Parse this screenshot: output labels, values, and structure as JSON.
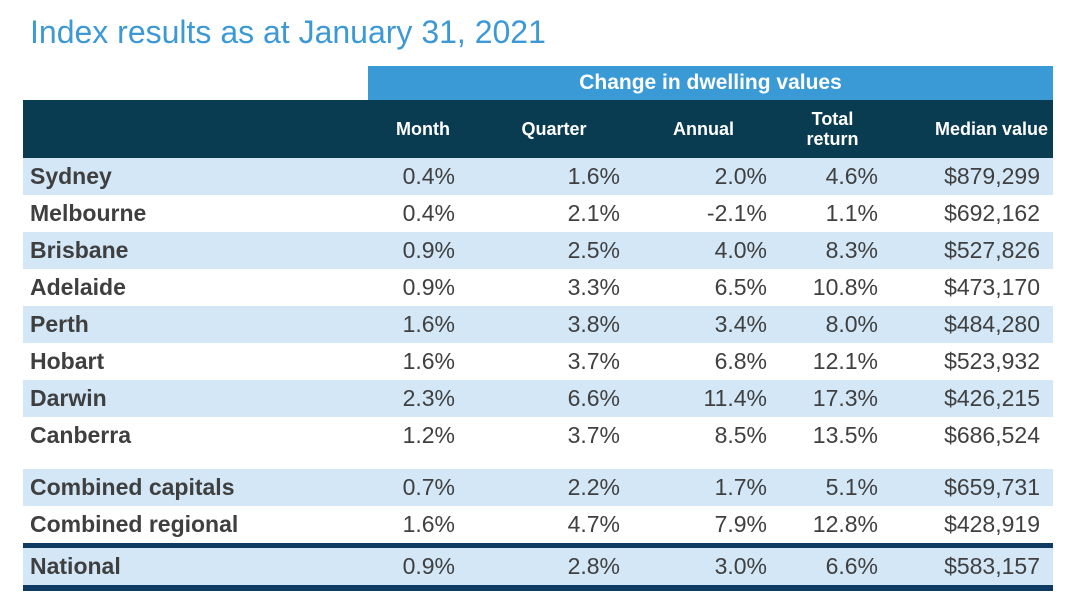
{
  "title": "Index results as at January 31, 2021",
  "table": {
    "band_label": "Change in dwelling values",
    "columns": {
      "month": "Month",
      "quarter": "Quarter",
      "annual": "Annual",
      "total_return": "Total return",
      "median_value": "Median value"
    },
    "rows": [
      {
        "label": "Sydney",
        "month": "0.4%",
        "quarter": "1.6%",
        "annual": "2.0%",
        "total_return": "4.6%",
        "median_value": "$879,299"
      },
      {
        "label": "Melbourne",
        "month": "0.4%",
        "quarter": "2.1%",
        "annual": "-2.1%",
        "total_return": "1.1%",
        "median_value": "$692,162"
      },
      {
        "label": "Brisbane",
        "month": "0.9%",
        "quarter": "2.5%",
        "annual": "4.0%",
        "total_return": "8.3%",
        "median_value": "$527,826"
      },
      {
        "label": "Adelaide",
        "month": "0.9%",
        "quarter": "3.3%",
        "annual": "6.5%",
        "total_return": "10.8%",
        "median_value": "$473,170"
      },
      {
        "label": "Perth",
        "month": "1.6%",
        "quarter": "3.8%",
        "annual": "3.4%",
        "total_return": "8.0%",
        "median_value": "$484,280"
      },
      {
        "label": "Hobart",
        "month": "1.6%",
        "quarter": "3.7%",
        "annual": "6.8%",
        "total_return": "12.1%",
        "median_value": "$523,932"
      },
      {
        "label": "Darwin",
        "month": "2.3%",
        "quarter": "6.6%",
        "annual": "11.4%",
        "total_return": "17.3%",
        "median_value": "$426,215"
      },
      {
        "label": "Canberra",
        "month": "1.2%",
        "quarter": "3.7%",
        "annual": "8.5%",
        "total_return": "13.5%",
        "median_value": "$686,524"
      }
    ],
    "summary_rows": [
      {
        "label": "Combined capitals",
        "month": "0.7%",
        "quarter": "2.2%",
        "annual": "1.7%",
        "total_return": "5.1%",
        "median_value": "$659,731"
      },
      {
        "label": "Combined regional",
        "month": "1.6%",
        "quarter": "4.7%",
        "annual": "7.9%",
        "total_return": "12.8%",
        "median_value": "$428,919"
      }
    ],
    "national_row": {
      "label": "National",
      "month": "0.9%",
      "quarter": "2.8%",
      "annual": "3.0%",
      "total_return": "6.6%",
      "median_value": "$583,157"
    }
  },
  "colors": {
    "title_blue": "#3C99D5",
    "band_blue": "#3A9AD6",
    "header_dark_teal": "#093B51",
    "row_light_blue": "#D3E7F7",
    "national_border_navy": "#0D3B61",
    "text_dark_gray": "#404040"
  },
  "chart_data": {
    "type": "table",
    "title": "Index results as at January 31, 2021",
    "group_header": "Change in dwelling values",
    "columns": [
      "Month",
      "Quarter",
      "Annual",
      "Total return",
      "Median value"
    ],
    "rows": [
      [
        "Sydney",
        "0.4%",
        "1.6%",
        "2.0%",
        "4.6%",
        "$879,299"
      ],
      [
        "Melbourne",
        "0.4%",
        "2.1%",
        "-2.1%",
        "1.1%",
        "$692,162"
      ],
      [
        "Brisbane",
        "0.9%",
        "2.5%",
        "4.0%",
        "8.3%",
        "$527,826"
      ],
      [
        "Adelaide",
        "0.9%",
        "3.3%",
        "6.5%",
        "10.8%",
        "$473,170"
      ],
      [
        "Perth",
        "1.6%",
        "3.8%",
        "3.4%",
        "8.0%",
        "$484,280"
      ],
      [
        "Hobart",
        "1.6%",
        "3.7%",
        "6.8%",
        "12.1%",
        "$523,932"
      ],
      [
        "Darwin",
        "2.3%",
        "6.6%",
        "11.4%",
        "17.3%",
        "$426,215"
      ],
      [
        "Canberra",
        "1.2%",
        "3.7%",
        "8.5%",
        "13.5%",
        "$686,524"
      ],
      [
        "Combined capitals",
        "0.7%",
        "2.2%",
        "1.7%",
        "5.1%",
        "$659,731"
      ],
      [
        "Combined regional",
        "1.6%",
        "4.7%",
        "7.9%",
        "12.8%",
        "$428,919"
      ],
      [
        "National",
        "0.9%",
        "2.8%",
        "3.0%",
        "6.6%",
        "$583,157"
      ]
    ]
  }
}
